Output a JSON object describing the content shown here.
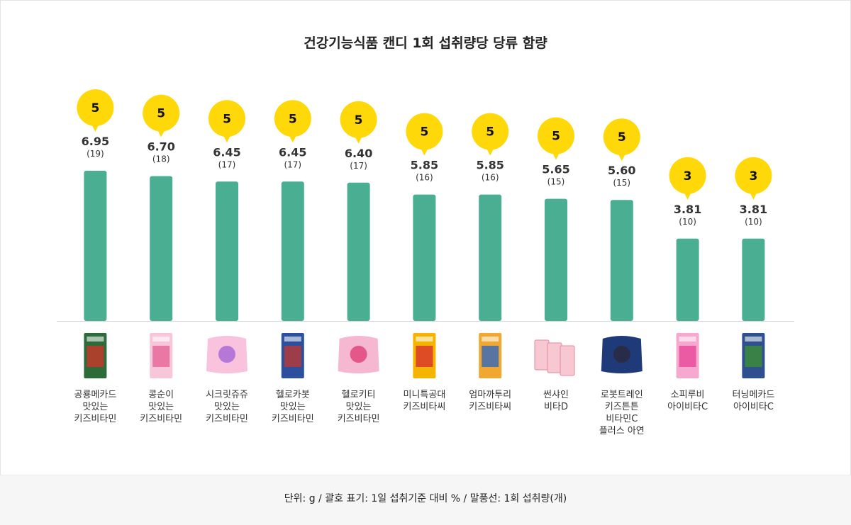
{
  "title": "건강기능식품 캔디 1회 섭취량당 당류 함량",
  "footer": "단위: g / 괄호 표기: 1일 섭취기준 대비 % /  말풍선: 1회 섭취량(개)",
  "colors": {
    "bar": "#4aae93",
    "bubble": "#ffd80a",
    "baseline": "#d7d7d7"
  },
  "chart_data": {
    "type": "bar",
    "categories": [
      "공룡메카드 맛있는 키즈비타민",
      "콩순이 맛있는 키즈비타민",
      "시크릿쥬쥬 맛있는 키즈비타민",
      "헬로카봇 맛있는 키즈비타민",
      "헬로키티 맛있는 키즈비타민",
      "미니특공대 키즈비타씨",
      "엄마까투리 키즈비타씨",
      "썬샤인 비타D",
      "로봇트레인 키즈튼튼 비타민C 플러스 아연",
      "소피루비 아이비타C",
      "터닝메카드 아이비타C"
    ],
    "category_lines": [
      [
        "공룡메카드",
        "맛있는",
        "키즈비타민"
      ],
      [
        "콩순이",
        "맛있는",
        "키즈비타민"
      ],
      [
        "시크릿쥬쥬",
        "맛있는",
        "키즈비타민"
      ],
      [
        "헬로카봇",
        "맛있는",
        "키즈비타민"
      ],
      [
        "헬로키티",
        "맛있는",
        "키즈비타민"
      ],
      [
        "미니특공대",
        "키즈비타씨"
      ],
      [
        "엄마까투리",
        "키즈비타씨"
      ],
      [
        "썬샤인",
        "비타D"
      ],
      [
        "로봇트레인",
        "키즈튼튼",
        "비타민C",
        "플러스 아연"
      ],
      [
        "소피루비",
        "아이비타C"
      ],
      [
        "터닝메카드",
        "아이비타C"
      ]
    ],
    "values": [
      6.95,
      6.7,
      6.45,
      6.45,
      6.4,
      5.85,
      5.85,
      5.65,
      5.6,
      3.81,
      3.81
    ],
    "value_labels": [
      "6.95",
      "6.70",
      "6.45",
      "6.45",
      "6.40",
      "5.85",
      "5.85",
      "5.65",
      "5.60",
      "3.81",
      "3.81"
    ],
    "percent_labels": [
      "(19)",
      "(18)",
      "(17)",
      "(17)",
      "(17)",
      "(16)",
      "(16)",
      "(15)",
      "(15)",
      "(10)",
      "(10)"
    ],
    "servings": [
      "5",
      "5",
      "5",
      "5",
      "5",
      "5",
      "5",
      "5",
      "5",
      "3",
      "3"
    ],
    "product_icons": [
      "dino-mecard-box-icon",
      "kongsooni-box-icon",
      "secret-jouju-bag-icon",
      "hello-carbot-box-icon",
      "hello-kitty-bag-icon",
      "mini-force-box-icon",
      "eomma-kkaturi-box-icon",
      "sunshine-sachet-icon",
      "robot-train-bag-icon",
      "sofia-ruby-box-icon",
      "turning-mecard-box-icon"
    ],
    "ylim": [
      0,
      7.5
    ],
    "grid": false,
    "legend": "none"
  }
}
